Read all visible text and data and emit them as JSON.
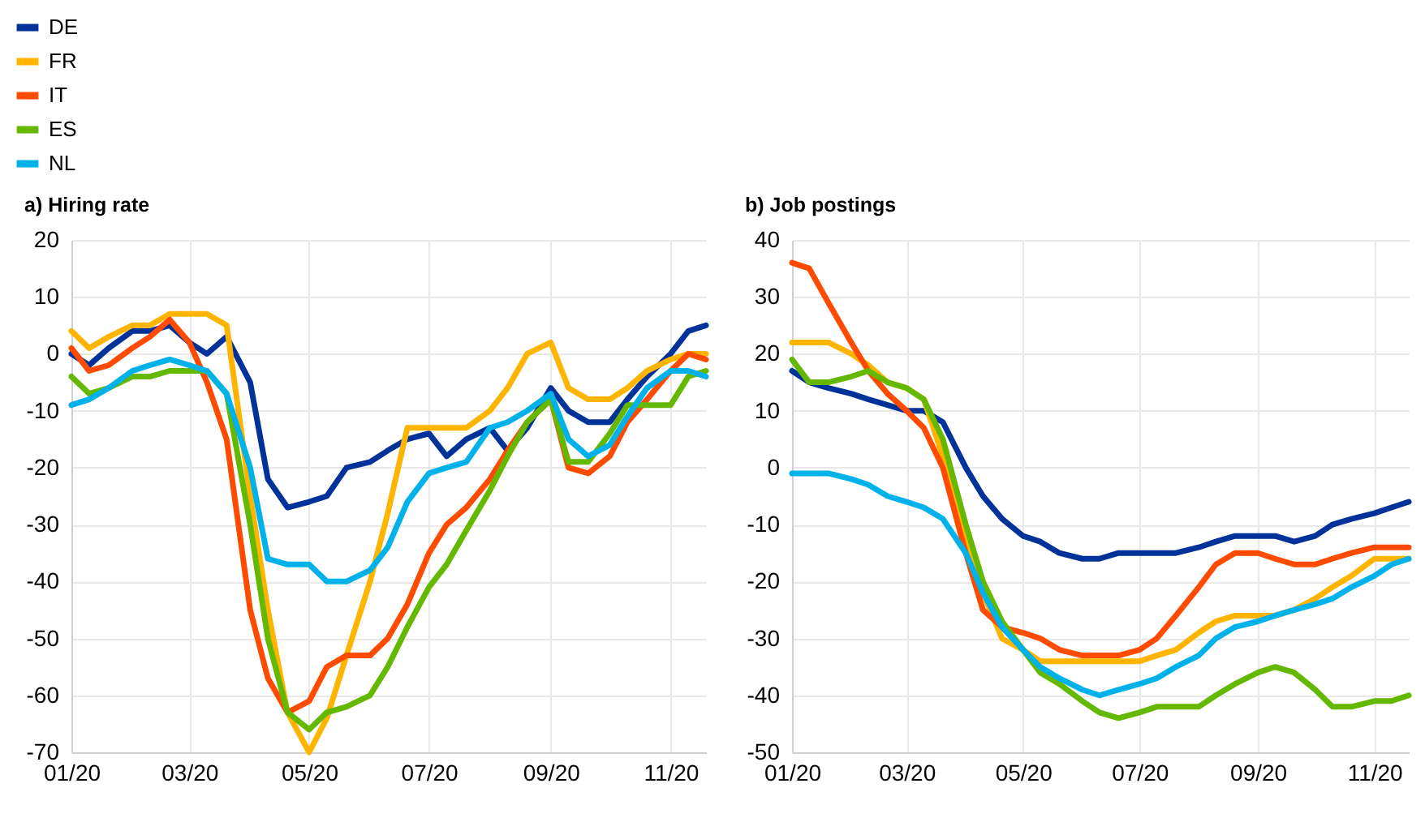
{
  "chart_data": [
    {
      "type": "line",
      "title": "a) Hiring rate",
      "x": [
        "2020-01-01",
        "2020-01-10",
        "2020-01-20",
        "2020-02-01",
        "2020-02-10",
        "2020-02-20",
        "2020-03-01",
        "2020-03-10",
        "2020-03-20",
        "2020-04-01",
        "2020-04-10",
        "2020-04-20",
        "2020-05-01",
        "2020-05-10",
        "2020-05-20",
        "2020-06-01",
        "2020-06-10",
        "2020-06-20",
        "2020-07-01",
        "2020-07-10",
        "2020-07-20",
        "2020-08-01",
        "2020-08-10",
        "2020-08-20",
        "2020-09-01",
        "2020-09-10",
        "2020-09-20",
        "2020-10-01",
        "2020-10-10",
        "2020-10-20",
        "2020-11-01",
        "2020-11-10",
        "2020-11-19"
      ],
      "series": [
        {
          "name": "DE",
          "color": "#003299",
          "values": [
            0,
            -2,
            1,
            4,
            4,
            5,
            2,
            0,
            3,
            -5,
            -22,
            -27,
            -26,
            -25,
            -20,
            -19,
            -17,
            -15,
            -14,
            -18,
            -15,
            -13,
            -17,
            -13,
            -6,
            -10,
            -12,
            -12,
            -8,
            -4,
            0,
            4,
            5
          ]
        },
        {
          "name": "FR",
          "color": "#ffb400",
          "values": [
            4,
            1,
            3,
            5,
            5,
            7,
            7,
            7,
            5,
            -25,
            -45,
            -63,
            -70,
            -64,
            -53,
            -40,
            -28,
            -13,
            -13,
            -13,
            -13,
            -10,
            -6,
            0,
            2,
            -6,
            -8,
            -8,
            -6,
            -3,
            -1,
            0,
            0
          ]
        },
        {
          "name": "IT",
          "color": "#ff4b00",
          "values": [
            1,
            -3,
            -2,
            1,
            3,
            6,
            2,
            -5,
            -15,
            -45,
            -57,
            -63,
            -61,
            -55,
            -53,
            -53,
            -50,
            -44,
            -35,
            -30,
            -27,
            -22,
            -17,
            -12,
            -8,
            -20,
            -21,
            -18,
            -12,
            -8,
            -3,
            0,
            -1
          ]
        },
        {
          "name": "ES",
          "color": "#65b800",
          "values": [
            -4,
            -7,
            -6,
            -4,
            -4,
            -3,
            -3,
            -3,
            -7,
            -30,
            -50,
            -63,
            -66,
            -63,
            -62,
            -60,
            -55,
            -48,
            -41,
            -37,
            -31,
            -24,
            -18,
            -12,
            -8,
            -19,
            -19,
            -14,
            -9,
            -9,
            -9,
            -4,
            -3
          ]
        },
        {
          "name": "NL",
          "color": "#00b1ea",
          "values": [
            -9,
            -8,
            -6,
            -3,
            -2,
            -1,
            -2,
            -3,
            -7,
            -20,
            -36,
            -37,
            -37,
            -40,
            -40,
            -38,
            -34,
            -26,
            -21,
            -20,
            -19,
            -13,
            -12,
            -10,
            -7,
            -15,
            -18,
            -16,
            -11,
            -6,
            -3,
            -3,
            -4
          ]
        }
      ],
      "xlim": [
        "2020-01-01",
        "2020-11-19"
      ],
      "xticks": [
        {
          "value": "2020-01-01",
          "label": "01/20"
        },
        {
          "value": "2020-03-01",
          "label": "03/20"
        },
        {
          "value": "2020-05-01",
          "label": "05/20"
        },
        {
          "value": "2020-07-01",
          "label": "07/20"
        },
        {
          "value": "2020-09-01",
          "label": "09/20"
        },
        {
          "value": "2020-11-01",
          "label": "11/20"
        }
      ],
      "ylim": [
        -70,
        20
      ],
      "yticks": [
        -70,
        -60,
        -50,
        -40,
        -30,
        -20,
        -10,
        0,
        10,
        20
      ],
      "grid": true,
      "legend": "top left"
    },
    {
      "type": "line",
      "title": "b) Job postings",
      "x": [
        "2020-01-01",
        "2020-01-10",
        "2020-01-20",
        "2020-02-01",
        "2020-02-10",
        "2020-02-20",
        "2020-03-01",
        "2020-03-10",
        "2020-03-20",
        "2020-04-01",
        "2020-04-10",
        "2020-04-20",
        "2020-05-01",
        "2020-05-10",
        "2020-05-20",
        "2020-06-01",
        "2020-06-10",
        "2020-06-20",
        "2020-07-01",
        "2020-07-10",
        "2020-07-20",
        "2020-08-01",
        "2020-08-10",
        "2020-08-20",
        "2020-09-01",
        "2020-09-10",
        "2020-09-20",
        "2020-10-01",
        "2020-10-10",
        "2020-10-20",
        "2020-11-01",
        "2020-11-10",
        "2020-11-19"
      ],
      "series": [
        {
          "name": "DE",
          "color": "#003299",
          "values": [
            17,
            15,
            14,
            13,
            12,
            11,
            10,
            10,
            8,
            0,
            -5,
            -9,
            -12,
            -13,
            -15,
            -16,
            -16,
            -15,
            -15,
            -15,
            -15,
            -14,
            -13,
            -12,
            -12,
            -12,
            -13,
            -12,
            -10,
            -9,
            -8,
            -7,
            -6
          ]
        },
        {
          "name": "FR",
          "color": "#ffb400",
          "values": [
            22,
            22,
            22,
            20,
            18,
            15,
            14,
            12,
            2,
            -13,
            -22,
            -30,
            -32,
            -34,
            -34,
            -34,
            -34,
            -34,
            -34,
            -33,
            -32,
            -29,
            -27,
            -26,
            -26,
            -26,
            -25,
            -23,
            -21,
            -19,
            -16,
            -16,
            -16
          ]
        },
        {
          "name": "IT",
          "color": "#ff4b00",
          "values": [
            36,
            35,
            29,
            22,
            17,
            13,
            10,
            7,
            0,
            -15,
            -25,
            -28,
            -29,
            -30,
            -32,
            -33,
            -33,
            -33,
            -32,
            -30,
            -26,
            -21,
            -17,
            -15,
            -15,
            -16,
            -17,
            -17,
            -16,
            -15,
            -14,
            -14,
            -14
          ]
        },
        {
          "name": "ES",
          "color": "#65b800",
          "values": [
            19,
            15,
            15,
            16,
            17,
            15,
            14,
            12,
            5,
            -10,
            -20,
            -27,
            -32,
            -36,
            -38,
            -41,
            -43,
            -44,
            -43,
            -42,
            -42,
            -42,
            -40,
            -38,
            -36,
            -35,
            -36,
            -39,
            -42,
            -42,
            -41,
            -41,
            -40
          ]
        },
        {
          "name": "NL",
          "color": "#00b1ea",
          "values": [
            -1,
            -1,
            -1,
            -2,
            -3,
            -5,
            -6,
            -7,
            -9,
            -15,
            -22,
            -28,
            -32,
            -35,
            -37,
            -39,
            -40,
            -39,
            -38,
            -37,
            -35,
            -33,
            -30,
            -28,
            -27,
            -26,
            -25,
            -24,
            -23,
            -21,
            -19,
            -17,
            -16
          ]
        }
      ],
      "xlim": [
        "2020-01-01",
        "2020-11-19"
      ],
      "xticks": [
        {
          "value": "2020-01-01",
          "label": "01/20"
        },
        {
          "value": "2020-03-01",
          "label": "03/20"
        },
        {
          "value": "2020-05-01",
          "label": "05/20"
        },
        {
          "value": "2020-07-01",
          "label": "07/20"
        },
        {
          "value": "2020-09-01",
          "label": "09/20"
        },
        {
          "value": "2020-11-01",
          "label": "11/20"
        }
      ],
      "ylim": [
        -50,
        40
      ],
      "yticks": [
        -50,
        -40,
        -30,
        -20,
        -10,
        0,
        10,
        20,
        30,
        40
      ],
      "grid": true
    }
  ]
}
